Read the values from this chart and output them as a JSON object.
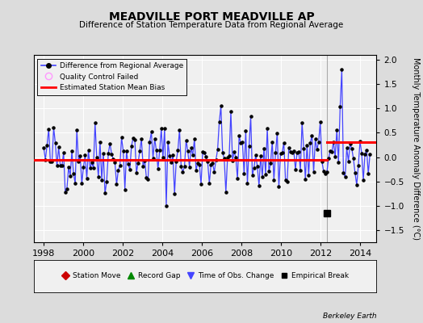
{
  "title": "MEADVILLE PORT MEADVILLE AP",
  "subtitle": "Difference of Station Temperature Data from Regional Average",
  "ylabel": "Monthly Temperature Anomaly Difference (°C)",
  "xlim": [
    1997.5,
    2014.83
  ],
  "ylim": [
    -1.75,
    2.1
  ],
  "yticks": [
    -1.5,
    -1.0,
    -0.5,
    0.0,
    0.5,
    1.0,
    1.5,
    2.0
  ],
  "xticks": [
    1998,
    2000,
    2002,
    2004,
    2006,
    2008,
    2010,
    2012,
    2014
  ],
  "bias_before": -0.05,
  "bias_after": 0.3,
  "break_year": 2012.33,
  "empirical_break_x": 2012.33,
  "empirical_break_y": -1.15,
  "background_color": "#dcdcdc",
  "plot_bg_color": "#f0f0f0",
  "grid_color": "#ffffff",
  "line_color": "#4444ff",
  "dot_color": "#000000",
  "bias_color": "#ff0000",
  "seed": 42,
  "n_points": 198
}
